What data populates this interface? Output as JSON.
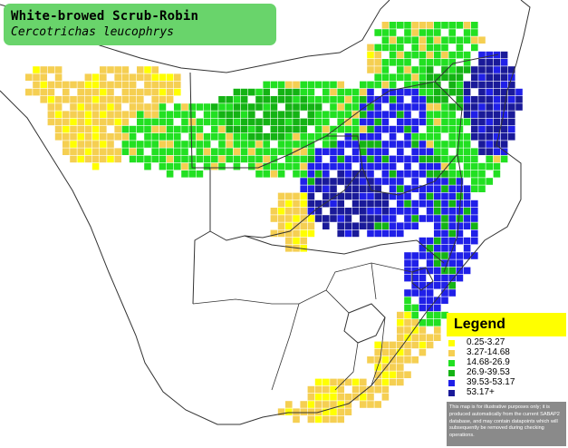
{
  "title": {
    "common_name": "White-browed Scrub-Robin",
    "scientific_name": "Cercotrichas leucophrys"
  },
  "legend": {
    "heading": "Legend",
    "items": [
      {
        "label": "0.25-3.27",
        "color": "#ffff00"
      },
      {
        "label": "3.27-14.68",
        "color": "#f5cf52"
      },
      {
        "label": "14.68-26.9",
        "color": "#22e022"
      },
      {
        "label": "26.9-39.53",
        "color": "#14b314"
      },
      {
        "label": "39.53-53.17",
        "color": "#2020e8"
      },
      {
        "label": "53.17+",
        "color": "#1a1a99"
      }
    ],
    "note": "This map is for illustrative purposes only; it is produced automatically from the current SABAP2 database, and may contain datapoints which will subsequently be removed during checking operations."
  }
}
